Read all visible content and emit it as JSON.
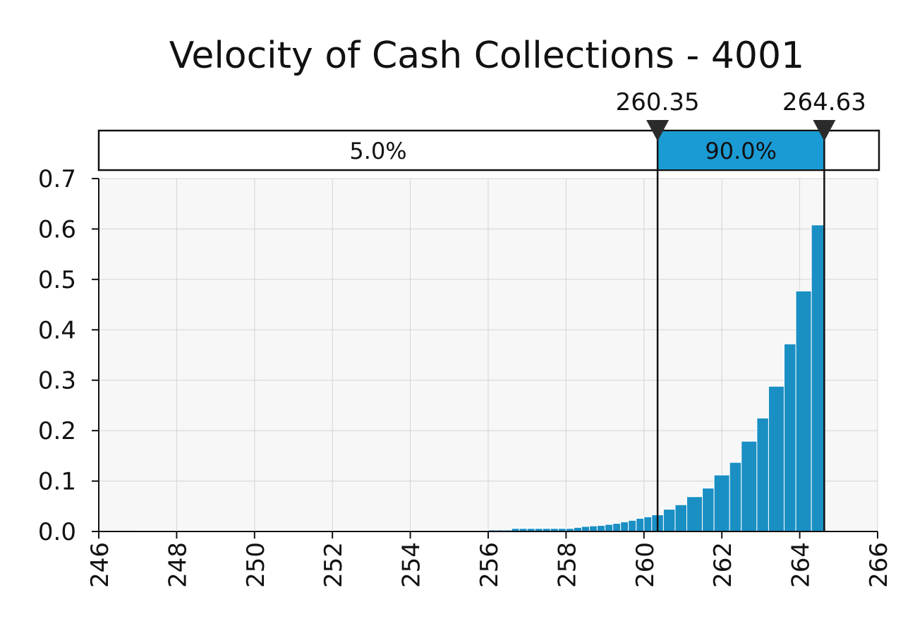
{
  "chart_data": {
    "type": "bar",
    "title": "Velocity of Cash Collections - 4001",
    "xlabel": "",
    "ylabel": "",
    "xlim": [
      246,
      266
    ],
    "ylim": [
      0,
      0.7
    ],
    "xticks": [
      "246",
      "248",
      "250",
      "252",
      "254",
      "256",
      "258",
      "260",
      "262",
      "264",
      "266"
    ],
    "yticks": [
      "0.0",
      "0.1",
      "0.2",
      "0.3",
      "0.4",
      "0.5",
      "0.6",
      "0.7"
    ],
    "grid": true,
    "bin_width": 0.2,
    "bins": [
      {
        "x": 247.0,
        "y": 0.002
      },
      {
        "x": 247.2,
        "y": 0.002
      },
      {
        "x": 247.4,
        "y": 0.002
      },
      {
        "x": 247.6,
        "y": 0.002
      },
      {
        "x": 247.8,
        "y": 0.002
      },
      {
        "x": 248.0,
        "y": 0.002
      },
      {
        "x": 248.2,
        "y": 0.002
      },
      {
        "x": 248.4,
        "y": 0.002
      },
      {
        "x": 248.6,
        "y": 0.002
      },
      {
        "x": 248.8,
        "y": 0.002
      },
      {
        "x": 249.0,
        "y": 0.002
      },
      {
        "x": 249.2,
        "y": 0.002
      },
      {
        "x": 249.4,
        "y": 0.002
      },
      {
        "x": 249.6,
        "y": 0.002
      },
      {
        "x": 249.8,
        "y": 0.002
      },
      {
        "x": 250.0,
        "y": 0.002
      },
      {
        "x": 250.2,
        "y": 0.002
      },
      {
        "x": 250.4,
        "y": 0.002
      },
      {
        "x": 250.6,
        "y": 0.002
      },
      {
        "x": 250.8,
        "y": 0.002
      },
      {
        "x": 251.0,
        "y": 0.002
      },
      {
        "x": 251.2,
        "y": 0.002
      },
      {
        "x": 251.4,
        "y": 0.002
      },
      {
        "x": 251.6,
        "y": 0.002
      },
      {
        "x": 251.8,
        "y": 0.002
      },
      {
        "x": 252.0,
        "y": 0.002
      },
      {
        "x": 252.2,
        "y": 0.002
      },
      {
        "x": 252.4,
        "y": 0.002
      },
      {
        "x": 252.6,
        "y": 0.002
      },
      {
        "x": 252.8,
        "y": 0.002
      },
      {
        "x": 253.0,
        "y": 0.002
      },
      {
        "x": 253.2,
        "y": 0.002
      },
      {
        "x": 253.4,
        "y": 0.002
      },
      {
        "x": 253.6,
        "y": 0.002
      },
      {
        "x": 253.8,
        "y": 0.002
      },
      {
        "x": 254.0,
        "y": 0.002
      },
      {
        "x": 254.2,
        "y": 0.002
      },
      {
        "x": 254.4,
        "y": 0.002
      },
      {
        "x": 254.6,
        "y": 0.002
      },
      {
        "x": 254.8,
        "y": 0.002
      },
      {
        "x": 255.0,
        "y": 0.002
      },
      {
        "x": 255.2,
        "y": 0.002
      },
      {
        "x": 255.4,
        "y": 0.002
      },
      {
        "x": 255.6,
        "y": 0.002
      },
      {
        "x": 255.8,
        "y": 0.002
      },
      {
        "x": 256.0,
        "y": 0.003
      },
      {
        "x": 256.2,
        "y": 0.003
      },
      {
        "x": 256.4,
        "y": 0.003
      },
      {
        "x": 256.6,
        "y": 0.006
      },
      {
        "x": 256.8,
        "y": 0.006
      },
      {
        "x": 257.0,
        "y": 0.006
      },
      {
        "x": 257.2,
        "y": 0.006
      },
      {
        "x": 257.4,
        "y": 0.006
      },
      {
        "x": 257.6,
        "y": 0.006
      },
      {
        "x": 257.8,
        "y": 0.006
      },
      {
        "x": 258.0,
        "y": 0.006
      },
      {
        "x": 258.2,
        "y": 0.008
      },
      {
        "x": 258.4,
        "y": 0.01
      },
      {
        "x": 258.6,
        "y": 0.011
      },
      {
        "x": 258.8,
        "y": 0.012
      },
      {
        "x": 259.0,
        "y": 0.014
      },
      {
        "x": 259.2,
        "y": 0.016
      },
      {
        "x": 259.4,
        "y": 0.019
      },
      {
        "x": 259.6,
        "y": 0.022
      },
      {
        "x": 259.8,
        "y": 0.026
      },
      {
        "x": 260.0,
        "y": 0.029
      },
      {
        "x": 260.2,
        "y": 0.033
      },
      {
        "x": 260.5,
        "y": 0.044
      },
      {
        "x": 260.8,
        "y": 0.053
      },
      {
        "x": 261.1,
        "y": 0.069
      },
      {
        "x": 261.5,
        "y": 0.086
      },
      {
        "x": 261.8,
        "y": 0.112
      },
      {
        "x": 262.2,
        "y": 0.137
      },
      {
        "x": 262.5,
        "y": 0.179
      },
      {
        "x": 262.9,
        "y": 0.225
      },
      {
        "x": 263.2,
        "y": 0.288
      },
      {
        "x": 263.6,
        "y": 0.372
      },
      {
        "x": 263.9,
        "y": 0.477
      },
      {
        "x": 264.3,
        "y": 0.608
      }
    ],
    "thresholds": [
      {
        "value": 260.35,
        "label": "260.35"
      },
      {
        "value": 264.63,
        "label": "264.63"
      }
    ],
    "band": {
      "left_label": "5.0%",
      "middle_label": "90.0%"
    },
    "colors": {
      "bar": "#1a8fc4",
      "bar_edge": "#ffffff",
      "band_fill": "#1b9bd4",
      "grid": "#d4d4d4",
      "plot_bg": "#f7f7f7",
      "marker": "#2b2b2b"
    }
  }
}
